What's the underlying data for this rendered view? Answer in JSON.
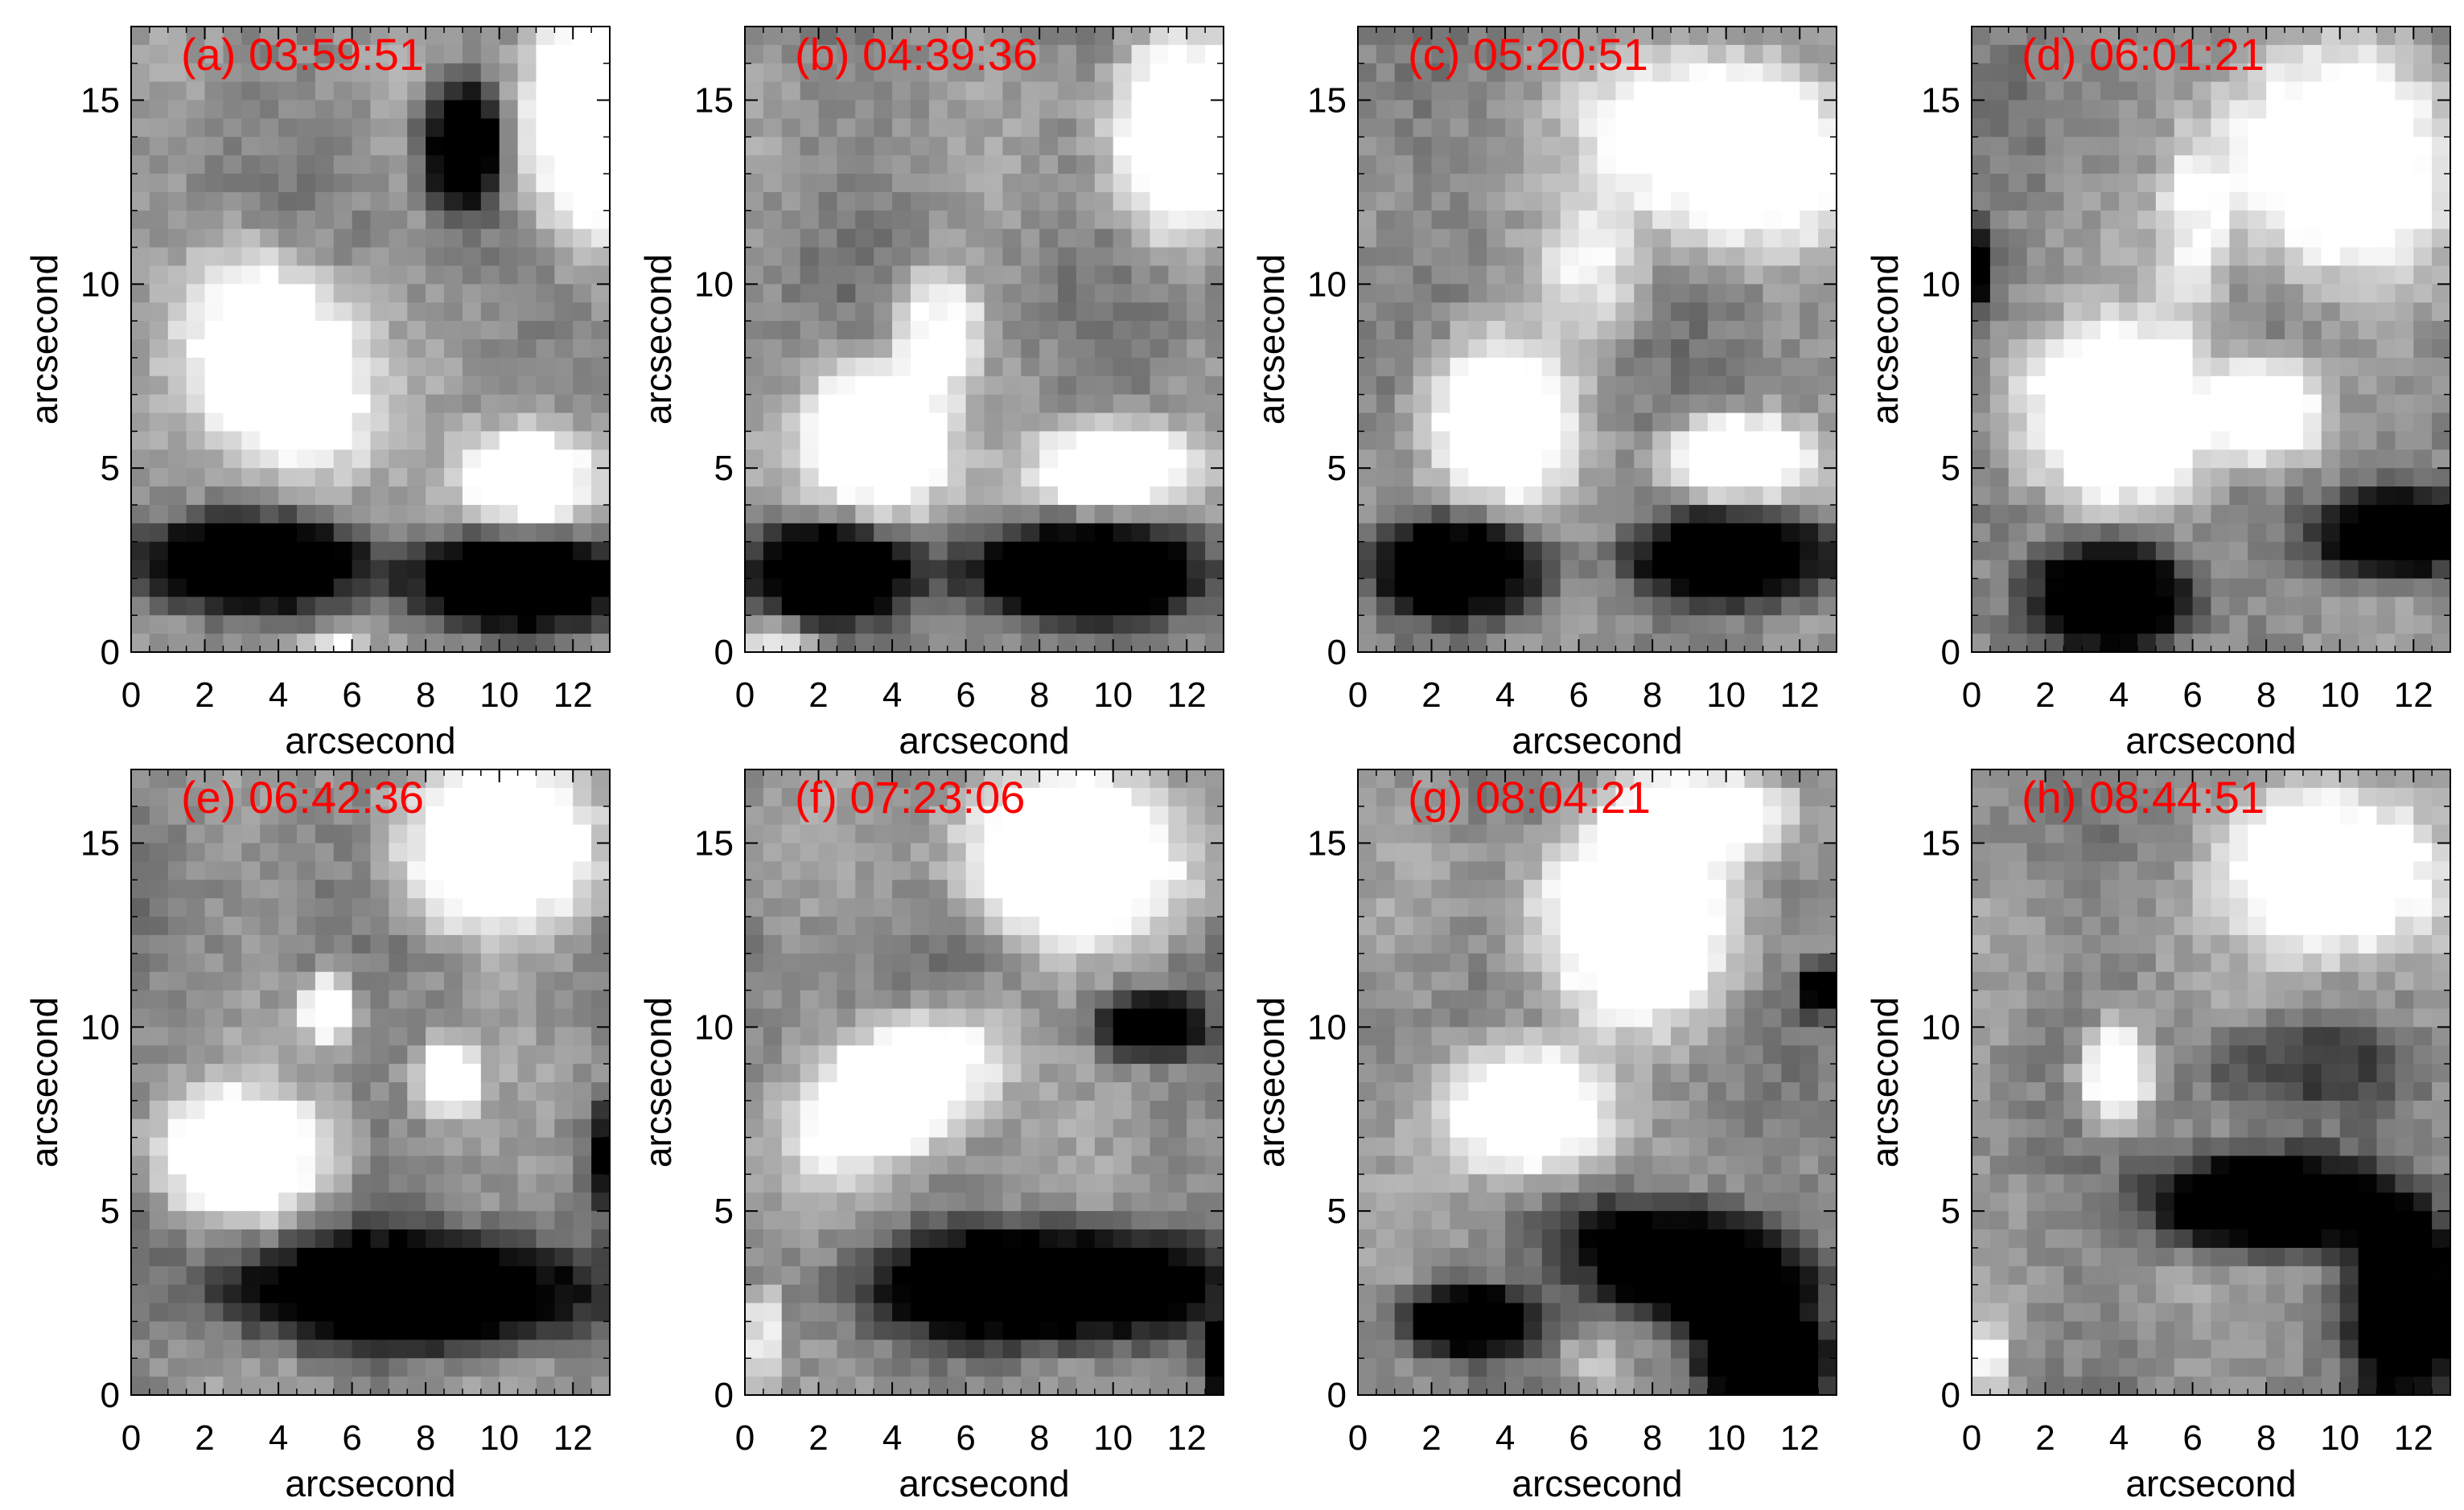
{
  "chart_data": {
    "type": "heatmap",
    "colormap": "grayscale",
    "grid": false,
    "layout": "2 rows x 4 columns",
    "title_color": "#ff0000",
    "xlim": [
      0,
      13
    ],
    "ylim": [
      0,
      17
    ],
    "xticks": [
      "0",
      "2",
      "4",
      "6",
      "8",
      "10",
      "12"
    ],
    "yticks": [
      "0",
      "5",
      "10",
      "15"
    ],
    "xlabel": "arcsecond",
    "ylabel": "arcsecond",
    "panels": [
      {
        "title": "(a) 03:59:51",
        "blobs": [
          {
            "x": 4.0,
            "y": 7.8,
            "rx": 2.4,
            "ry": 3.4,
            "v": 1.0,
            "rot": 25
          },
          {
            "x": 10.8,
            "y": 4.7,
            "rx": 2.0,
            "ry": 1.5,
            "v": 1.0,
            "rot": 0
          },
          {
            "x": 12.3,
            "y": 14.3,
            "rx": 1.8,
            "ry": 3.5,
            "v": 1.0,
            "rot": 0
          },
          {
            "x": 9.0,
            "y": 13.8,
            "rx": 1.1,
            "ry": 1.8,
            "v": -1.2,
            "rot": 0
          },
          {
            "x": 3.2,
            "y": 2.4,
            "rx": 3.3,
            "ry": 1.3,
            "v": -1.2,
            "rot": 0
          },
          {
            "x": 10.5,
            "y": 1.9,
            "rx": 3.2,
            "ry": 1.3,
            "v": -1.2,
            "rot": 0
          },
          {
            "x": 5.5,
            "y": 0.2,
            "rx": 1.0,
            "ry": 0.5,
            "v": 0.6,
            "rot": 0
          }
        ]
      },
      {
        "title": "(b) 04:39:36",
        "blobs": [
          {
            "x": 3.5,
            "y": 5.8,
            "rx": 2.1,
            "ry": 2.3,
            "v": 1.0,
            "rot": 0
          },
          {
            "x": 5.3,
            "y": 8.8,
            "rx": 1.2,
            "ry": 1.8,
            "v": 0.7,
            "rot": 0
          },
          {
            "x": 10.0,
            "y": 5.0,
            "rx": 2.2,
            "ry": 1.3,
            "v": 1.0,
            "rot": 0
          },
          {
            "x": 11.8,
            "y": 14.0,
            "rx": 2.0,
            "ry": 3.0,
            "v": 1.0,
            "rot": 0
          },
          {
            "x": 2.3,
            "y": 2.2,
            "rx": 2.3,
            "ry": 1.4,
            "v": -1.2,
            "rot": 0
          },
          {
            "x": 9.2,
            "y": 2.2,
            "rx": 3.5,
            "ry": 1.4,
            "v": -1.2,
            "rot": 0
          },
          {
            "x": 1.0,
            "y": 0.3,
            "rx": 1.0,
            "ry": 0.5,
            "v": 0.5,
            "rot": 0
          }
        ]
      },
      {
        "title": "(c) 05:20:51",
        "blobs": [
          {
            "x": 3.8,
            "y": 6.4,
            "rx": 2.2,
            "ry": 2.4,
            "v": 1.0,
            "rot": 0
          },
          {
            "x": 10.3,
            "y": 5.3,
            "rx": 2.0,
            "ry": 1.2,
            "v": 1.0,
            "rot": 0
          },
          {
            "x": 9.8,
            "y": 13.8,
            "rx": 3.8,
            "ry": 2.6,
            "v": 1.0,
            "rot": -20
          },
          {
            "x": 6.3,
            "y": 10.4,
            "rx": 1.5,
            "ry": 1.8,
            "v": 0.5,
            "rot": 0
          },
          {
            "x": 2.8,
            "y": 2.3,
            "rx": 2.5,
            "ry": 1.4,
            "v": -1.2,
            "rot": 0
          },
          {
            "x": 10.3,
            "y": 2.6,
            "rx": 3.0,
            "ry": 1.3,
            "v": -1.2,
            "rot": 0
          }
        ]
      },
      {
        "title": "(d) 06:01:21",
        "blobs": [
          {
            "x": 4.0,
            "y": 6.5,
            "rx": 3.2,
            "ry": 2.5,
            "v": 1.0,
            "rot": 0
          },
          {
            "x": 8.2,
            "y": 6.5,
            "rx": 1.6,
            "ry": 1.5,
            "v": 0.9,
            "rot": 0
          },
          {
            "x": 9.8,
            "y": 13.5,
            "rx": 3.5,
            "ry": 3.0,
            "v": 1.0,
            "rot": -20
          },
          {
            "x": 6.0,
            "y": 11.5,
            "rx": 1.0,
            "ry": 2.5,
            "v": 0.5,
            "rot": 0
          },
          {
            "x": 3.8,
            "y": 1.5,
            "rx": 2.2,
            "ry": 1.6,
            "v": -1.3,
            "rot": 0
          },
          {
            "x": 11.5,
            "y": 3.2,
            "rx": 2.3,
            "ry": 1.3,
            "v": -1.2,
            "rot": 0
          },
          {
            "x": 0.3,
            "y": 10.5,
            "rx": 0.4,
            "ry": 1.2,
            "v": -0.9,
            "rot": 0
          }
        ]
      },
      {
        "title": "(e) 06:42:36",
        "blobs": [
          {
            "x": 3.0,
            "y": 6.5,
            "rx": 2.5,
            "ry": 1.8,
            "v": 1.0,
            "rot": 0
          },
          {
            "x": 5.4,
            "y": 10.5,
            "rx": 0.8,
            "ry": 0.9,
            "v": 0.9,
            "rot": 0
          },
          {
            "x": 8.6,
            "y": 8.6,
            "rx": 0.9,
            "ry": 1.0,
            "v": 0.9,
            "rot": 0
          },
          {
            "x": 10.0,
            "y": 14.8,
            "rx": 3.0,
            "ry": 2.4,
            "v": 1.0,
            "rot": 0
          },
          {
            "x": 7.5,
            "y": 2.8,
            "rx": 5.0,
            "ry": 1.6,
            "v": -1.3,
            "rot": 0
          },
          {
            "x": 12.7,
            "y": 6.5,
            "rx": 0.4,
            "ry": 1.4,
            "v": -0.8,
            "rot": 0
          }
        ]
      },
      {
        "title": "(f) 07:23:06",
        "blobs": [
          {
            "x": 4.2,
            "y": 8.3,
            "rx": 3.2,
            "ry": 1.8,
            "v": 1.0,
            "rot": 30
          },
          {
            "x": 9.0,
            "y": 14.5,
            "rx": 3.3,
            "ry": 2.4,
            "v": 1.0,
            "rot": -10
          },
          {
            "x": 8.2,
            "y": 3.0,
            "rx": 4.8,
            "ry": 1.6,
            "v": -1.3,
            "rot": 0
          },
          {
            "x": 11.0,
            "y": 10.0,
            "rx": 1.5,
            "ry": 0.9,
            "v": -1.0,
            "rot": 0
          },
          {
            "x": 0.5,
            "y": 1.5,
            "rx": 0.6,
            "ry": 1.5,
            "v": 0.6,
            "rot": 0
          },
          {
            "x": 12.8,
            "y": 1.0,
            "rx": 0.4,
            "ry": 1.0,
            "v": -1.0,
            "rot": 0
          }
        ]
      },
      {
        "title": "(g) 08:04:21",
        "blobs": [
          {
            "x": 4.5,
            "y": 7.8,
            "rx": 2.4,
            "ry": 1.9,
            "v": 1.0,
            "rot": 0
          },
          {
            "x": 7.5,
            "y": 12.8,
            "rx": 2.8,
            "ry": 3.0,
            "v": 1.0,
            "rot": 10
          },
          {
            "x": 9.5,
            "y": 15.8,
            "rx": 2.5,
            "ry": 1.2,
            "v": 1.0,
            "rot": 0
          },
          {
            "x": 9.0,
            "y": 3.5,
            "rx": 3.6,
            "ry": 1.7,
            "v": -1.3,
            "rot": -15
          },
          {
            "x": 3.0,
            "y": 2.0,
            "rx": 2.0,
            "ry": 1.0,
            "v": -1.1,
            "rot": 0
          },
          {
            "x": 11.0,
            "y": 0.8,
            "rx": 1.8,
            "ry": 1.3,
            "v": -1.2,
            "rot": 0
          },
          {
            "x": 6.3,
            "y": 0.8,
            "rx": 1.0,
            "ry": 0.8,
            "v": 0.3,
            "rot": 0
          },
          {
            "x": 12.5,
            "y": 11.0,
            "rx": 0.4,
            "ry": 0.8,
            "v": -1.0,
            "rot": 0
          }
        ]
      },
      {
        "title": "(h) 08:44:51",
        "blobs": [
          {
            "x": 3.9,
            "y": 8.7,
            "rx": 1.0,
            "ry": 1.4,
            "v": 1.0,
            "rot": 0
          },
          {
            "x": 9.8,
            "y": 14.3,
            "rx": 3.0,
            "ry": 2.5,
            "v": 1.0,
            "rot": 0
          },
          {
            "x": 8.0,
            "y": 5.2,
            "rx": 3.2,
            "ry": 1.4,
            "v": -1.3,
            "rot": 0
          },
          {
            "x": 11.8,
            "y": 2.5,
            "rx": 1.6,
            "ry": 2.8,
            "v": -1.3,
            "rot": 0
          },
          {
            "x": 9.0,
            "y": 9.0,
            "rx": 3.0,
            "ry": 1.2,
            "v": -0.4,
            "rot": 0
          },
          {
            "x": 0.5,
            "y": 1.0,
            "rx": 0.5,
            "ry": 1.0,
            "v": 0.6,
            "rot": 0
          }
        ]
      }
    ]
  }
}
